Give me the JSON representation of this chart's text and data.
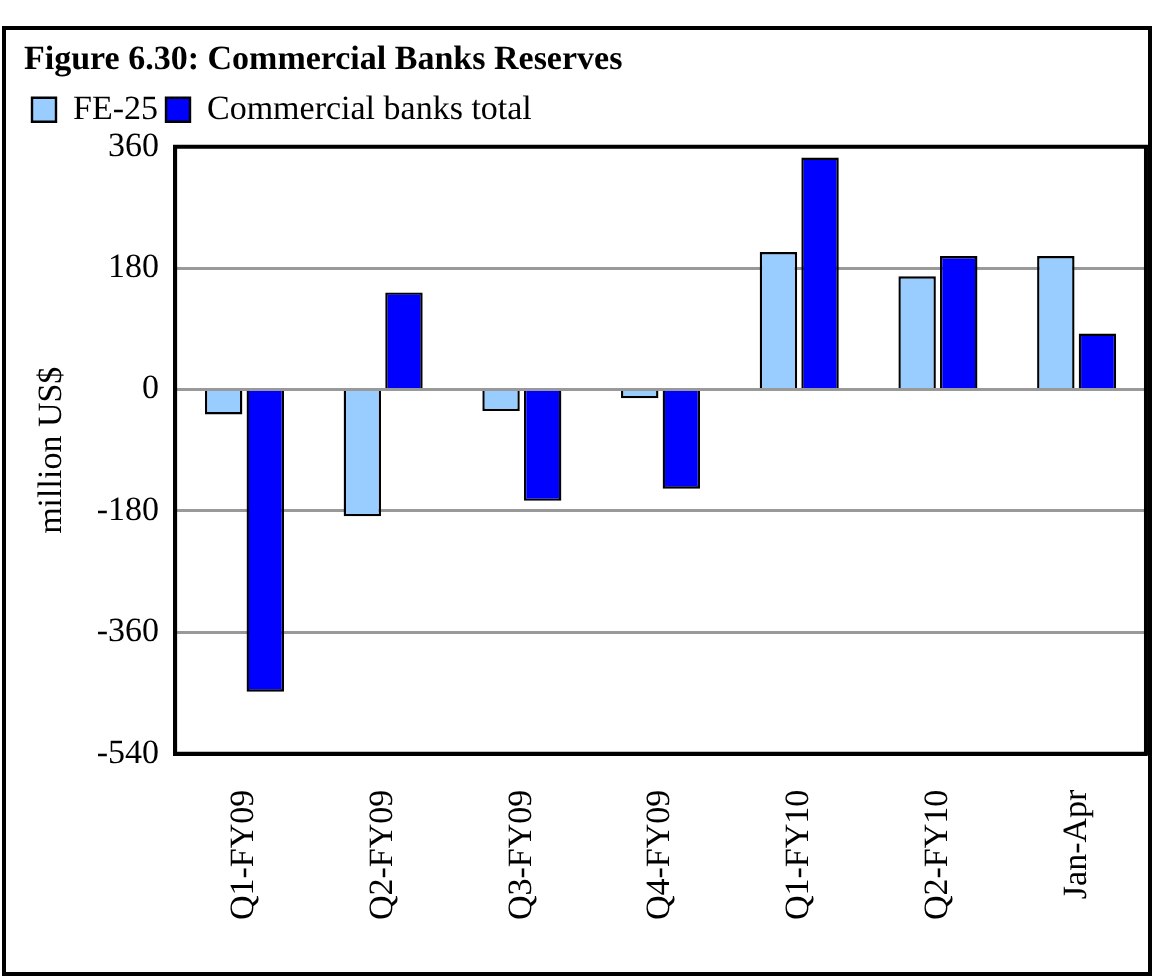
{
  "chart_data": {
    "type": "bar",
    "title": "Figure 6.30: Commercial Banks Reserves",
    "ylabel": "million US$",
    "categories": [
      "Q1-FY09",
      "Q2-FY09",
      "Q3-FY09",
      "Q4-FY09",
      "Q1-FY10",
      "Q2-FY10",
      "Jan-Apr"
    ],
    "series": [
      {
        "name": "FE-25",
        "color": "#99ccff",
        "values": [
          -37,
          -188,
          -32,
          -13,
          204,
          168,
          198
        ]
      },
      {
        "name": "Commercial banks total",
        "color": "#0000ff",
        "values": [
          -448,
          144,
          -165,
          -147,
          344,
          198,
          83
        ]
      }
    ],
    "ylim": [
      -540,
      360
    ],
    "yticks": [
      -540,
      -360,
      -180,
      0,
      180,
      360
    ],
    "grid": "y",
    "legend": "top left"
  }
}
